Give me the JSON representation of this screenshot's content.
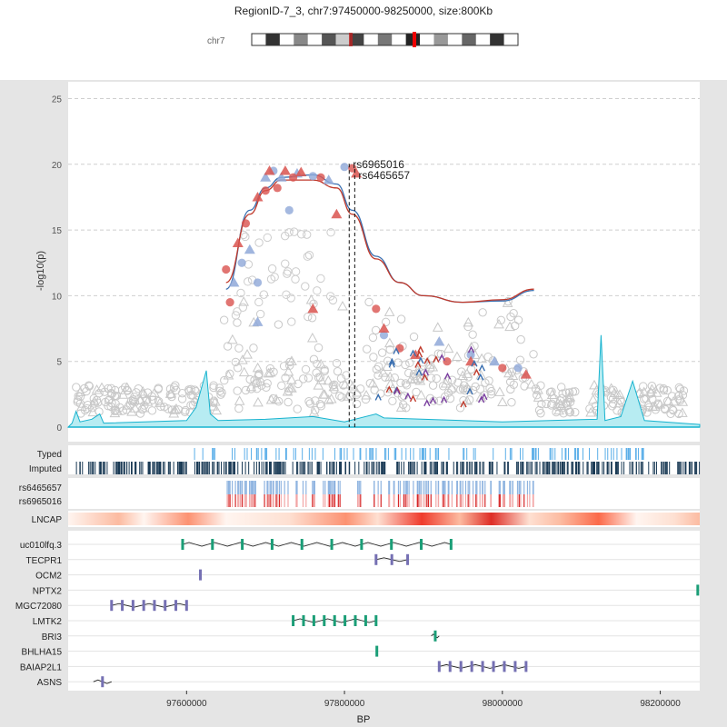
{
  "header": {
    "title": "RegionID-7_3, chr7:97450000-98250000, size:800Kb",
    "chrom_label": "chr7"
  },
  "chart_data": {
    "type": "scatter",
    "title": "RegionID-7_3, chr7:97450000-98250000, size:800Kb",
    "xlabel": "BP",
    "ylabel": "-log10(p)",
    "xlim": [
      97450000,
      98250000
    ],
    "ylim": [
      0,
      26
    ],
    "x_ticks": [
      97600000,
      97800000,
      98000000,
      98200000
    ],
    "y_ticks": [
      0,
      5,
      10,
      15,
      20,
      25
    ],
    "grid": true,
    "highlighted_snps": [
      {
        "name": "rs6965016",
        "x": 97806000,
        "y": 19.9
      },
      {
        "name": "rs6465657",
        "x": 97813000,
        "y": 19.5
      }
    ],
    "series": [
      {
        "name": "rs6465657",
        "color": "#8fa8d8",
        "points": [
          [
            97660000,
            11.0
          ],
          [
            97670000,
            12.5
          ],
          [
            97680000,
            13.5
          ],
          [
            97690000,
            11.0
          ],
          [
            97700000,
            19.0
          ],
          [
            97710000,
            19.5
          ],
          [
            97720000,
            19.0
          ],
          [
            97730000,
            16.5
          ],
          [
            97740000,
            19.3
          ],
          [
            97760000,
            19.1
          ],
          [
            97780000,
            18.8
          ],
          [
            97800000,
            19.8
          ],
          [
            97690000,
            8.0
          ],
          [
            97850000,
            7.0
          ],
          [
            97920000,
            6.5
          ],
          [
            97960000,
            5.5
          ],
          [
            97990000,
            5.0
          ],
          [
            98020000,
            4.5
          ]
        ]
      },
      {
        "name": "rs6965016",
        "color": "#d9534f",
        "points": [
          [
            97650000,
            12.0
          ],
          [
            97665000,
            14.0
          ],
          [
            97675000,
            15.5
          ],
          [
            97690000,
            17.5
          ],
          [
            97700000,
            18.0
          ],
          [
            97705000,
            19.5
          ],
          [
            97715000,
            18.2
          ],
          [
            97725000,
            19.5
          ],
          [
            97735000,
            19.0
          ],
          [
            97745000,
            19.4
          ],
          [
            97770000,
            19.0
          ],
          [
            97790000,
            16.2
          ],
          [
            97810000,
            19.7
          ],
          [
            97815000,
            19.3
          ],
          [
            97655000,
            9.5
          ],
          [
            97760000,
            9.0
          ],
          [
            97840000,
            9.0
          ],
          [
            97850000,
            7.5
          ],
          [
            97870000,
            6.0
          ],
          [
            97890000,
            5.5
          ],
          [
            97930000,
            5.0
          ],
          [
            97960000,
            5.0
          ],
          [
            98000000,
            4.5
          ],
          [
            98030000,
            4.0
          ]
        ]
      }
    ],
    "smooth_lines": [
      {
        "name": "rs6465657",
        "color": "#3a6fb0",
        "points": [
          [
            97650000,
            10.5
          ],
          [
            97680000,
            16.5
          ],
          [
            97700000,
            18.2
          ],
          [
            97720000,
            19.0
          ],
          [
            97760000,
            19.2
          ],
          [
            97790000,
            18.5
          ],
          [
            97810000,
            16.5
          ],
          [
            97840000,
            13.0
          ],
          [
            97870000,
            11.0
          ],
          [
            97900000,
            10.0
          ],
          [
            97950000,
            9.5
          ],
          [
            98000000,
            9.6
          ],
          [
            98040000,
            10.4
          ]
        ]
      },
      {
        "name": "rs6965016",
        "color": "#c0392b",
        "points": [
          [
            97650000,
            11.0
          ],
          [
            97680000,
            16.2
          ],
          [
            97700000,
            18.0
          ],
          [
            97720000,
            18.8
          ],
          [
            97760000,
            18.8
          ],
          [
            97790000,
            18.2
          ],
          [
            97810000,
            16.2
          ],
          [
            97840000,
            12.8
          ],
          [
            97870000,
            11.0
          ],
          [
            97900000,
            10.0
          ],
          [
            97950000,
            9.5
          ],
          [
            98000000,
            9.7
          ],
          [
            98040000,
            10.5
          ]
        ]
      }
    ],
    "tracks": {
      "snp_labels": [
        "Typed",
        "Imputed"
      ],
      "sample_labels": [
        "rs6465657",
        "rs6965016"
      ],
      "cell_label": "LNCAP",
      "genes": [
        {
          "name": "uc010lfq.3",
          "start": 97595000,
          "end": 97935000,
          "color": "#1b9e77",
          "exon_color": "#1b9e77"
        },
        {
          "name": "TECPR1",
          "start": 97840000,
          "end": 97880000,
          "color": "#7570b3"
        },
        {
          "name": "OCM2",
          "start": 97615000,
          "end": 97620000,
          "color": "#7570b3"
        },
        {
          "name": "NPTX2",
          "start": 98245000,
          "end": 98250000,
          "color": "#1b9e77"
        },
        {
          "name": "MGC72080",
          "start": 97505000,
          "end": 97600000,
          "color": "#7570b3"
        },
        {
          "name": "LMTK2",
          "start": 97735000,
          "end": 97840000,
          "color": "#1b9e77"
        },
        {
          "name": "BRI3",
          "start": 97910000,
          "end": 97920000,
          "color": "#1b9e77"
        },
        {
          "name": "BHLHA15",
          "start": 97840000,
          "end": 97842000,
          "color": "#1b9e77"
        },
        {
          "name": "BAIAP2L1",
          "start": 97920000,
          "end": 98030000,
          "color": "#7570b3"
        },
        {
          "name": "ASNS",
          "start": 97482000,
          "end": 97505000,
          "color": "#7570b3"
        }
      ]
    }
  }
}
